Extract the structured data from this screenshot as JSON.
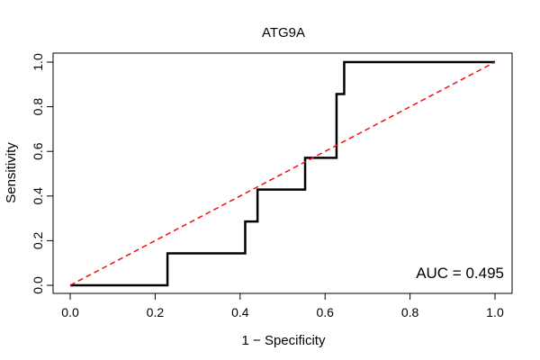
{
  "chart_data": {
    "type": "line",
    "title": "ATG9A",
    "xlabel": "1 − Specificity",
    "ylabel": "Sensitivity",
    "xlim": [
      0,
      1
    ],
    "ylim": [
      0,
      1
    ],
    "x_ticks": [
      0.0,
      0.2,
      0.4,
      0.6,
      0.8,
      1.0
    ],
    "y_ticks": [
      0.0,
      0.2,
      0.4,
      0.6,
      0.8,
      1.0
    ],
    "x_tick_labels": [
      "0.0",
      "0.2",
      "0.4",
      "0.6",
      "0.8",
      "1.0"
    ],
    "y_tick_labels": [
      "0.0",
      "0.2",
      "0.4",
      "0.6",
      "0.8",
      "1.0"
    ],
    "grid": false,
    "series": [
      {
        "x": [
          0.0,
          0.229,
          0.229,
          0.412,
          0.412,
          0.441,
          0.441,
          0.553,
          0.553,
          0.627,
          0.627,
          0.645,
          0.645,
          1.0
        ],
        "y": [
          0.0,
          0.0,
          0.143,
          0.143,
          0.286,
          0.286,
          0.429,
          0.429,
          0.571,
          0.571,
          0.857,
          0.857,
          1.0,
          1.0
        ],
        "color": "#000000",
        "style": "solid"
      },
      {
        "x": [
          0.0,
          1.0
        ],
        "y": [
          0.0,
          1.0
        ],
        "color": "#ee1111",
        "style": "dashed"
      }
    ],
    "annotation": "AUC = 0.495"
  }
}
